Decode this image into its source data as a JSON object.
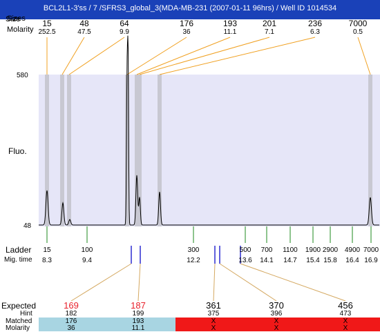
{
  "header": {
    "title": "BCL2L1-3'ss / 7 /SFRS3_global_3(MDA-MB-231 (2007-01-11 96hrs) / Well ID 1014534"
  },
  "left_labels": {
    "size_label": "Size",
    "sizes_label": "Sizes",
    "molarity_label": "Molarity"
  },
  "peaks": [
    {
      "size": "15",
      "molarity": "252.5"
    },
    {
      "size": "48",
      "molarity": "47.5"
    },
    {
      "size": "64",
      "molarity": "9.9"
    },
    {
      "size": "176",
      "molarity": "36"
    },
    {
      "size": "193",
      "molarity": "11.1"
    },
    {
      "size": "201",
      "molarity": "7.1"
    },
    {
      "size": "236",
      "molarity": "6.3"
    },
    {
      "size": "7000",
      "molarity": "0.5"
    }
  ],
  "plot": {
    "y_max_label": "580",
    "y_min_label": "48",
    "y_axis_title": "Fluo."
  },
  "ladder": {
    "label": "Ladder",
    "mig_label": "Mig. time",
    "items": [
      {
        "size": "15",
        "mig": "8.3"
      },
      {
        "size": "100",
        "mig": "9.4"
      },
      {
        "size": "300",
        "mig": "12.2"
      },
      {
        "size": "500",
        "mig": "13.6"
      },
      {
        "size": "700",
        "mig": "14.1"
      },
      {
        "size": "1100",
        "mig": "14.7"
      },
      {
        "size": "1900",
        "mig": "15.4"
      },
      {
        "size": "2900",
        "mig": "15.8"
      },
      {
        "size": "4900",
        "mig": "16.4"
      },
      {
        "size": "7000",
        "mig": "16.9"
      }
    ]
  },
  "table": {
    "expected_label": "Expected",
    "hint_label": "Hint",
    "matched_label": "Matched",
    "molarity_label": "Molarity",
    "columns": [
      {
        "expected": "169",
        "hint": "182",
        "matched": "176",
        "molarity": "36",
        "expected_color": "#e8202a"
      },
      {
        "expected": "187",
        "hint": "199",
        "matched": "193",
        "molarity": "11.1",
        "expected_color": "#e8202a"
      },
      {
        "expected": "361",
        "hint": "375",
        "matched": "X",
        "molarity": "X",
        "expected_color": "#000000"
      },
      {
        "expected": "370",
        "hint": "396",
        "matched": "X",
        "molarity": "X",
        "expected_color": "#000000"
      },
      {
        "expected": "456",
        "hint": "473",
        "matched": "X",
        "molarity": "X",
        "expected_color": "#000000"
      }
    ]
  },
  "colors": {
    "title_bar": "#1a41b8",
    "plot_bg": "#e6e6f8",
    "peak_band": "#c8c8d2",
    "connector": "#f0a020",
    "ladder_tick": "#1e8a1e",
    "marker_blue": "#2a2ad0",
    "matched_band": "#a8d5e2",
    "unmatched_band": "#f01818",
    "crossline": "#d4a860"
  }
}
